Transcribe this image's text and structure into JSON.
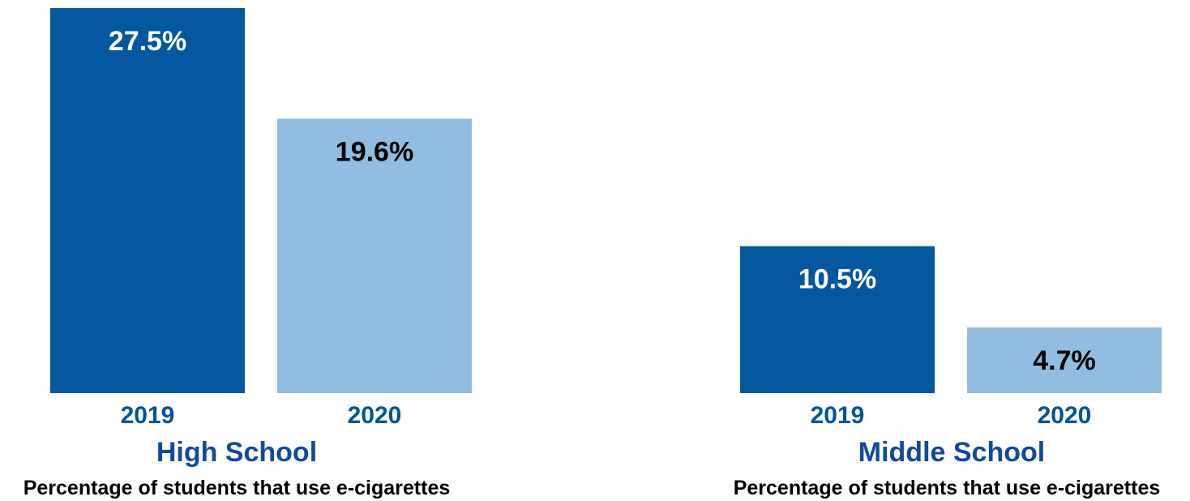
{
  "colors": {
    "dark_bar": "#03579f",
    "light_bar": "#90bde0",
    "year_text": "#00539c",
    "title_text": "#124a9a",
    "subtitle_text": "#000000",
    "label_on_dark": "#ffffff",
    "label_on_light": "#000000"
  },
  "chart_data": [
    {
      "type": "bar",
      "categories": [
        "2019",
        "2020"
      ],
      "values": [
        27.5,
        19.6
      ],
      "value_labels": [
        "27.5%",
        "19.6%"
      ],
      "title": "High School",
      "subtitle": "Percentage of students that use e-cigarettes",
      "ylim": [
        0,
        27.5
      ],
      "grid": false,
      "legend": "none"
    },
    {
      "type": "bar",
      "categories": [
        "2019",
        "2020"
      ],
      "values": [
        10.5,
        4.7
      ],
      "value_labels": [
        "10.5%",
        "4.7%"
      ],
      "title": "Middle School",
      "subtitle": "Percentage of students that use e-cigarettes",
      "ylim": [
        0,
        27.5
      ],
      "grid": false,
      "legend": "none"
    }
  ]
}
